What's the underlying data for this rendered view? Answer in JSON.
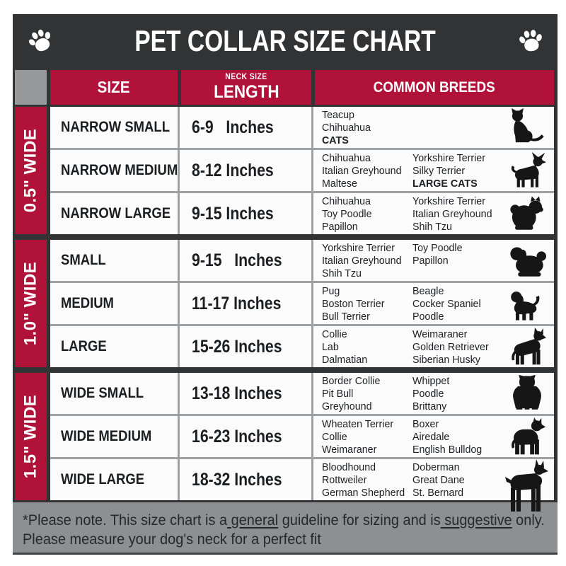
{
  "title": "PET COLLAR SIZE CHART",
  "title_icons": {
    "left": "paw-icon",
    "right": "paw-icon"
  },
  "header": {
    "size": "SIZE",
    "neck_size": "NECK SIZE",
    "length": "LENGTH",
    "breeds": "COMMON BREEDS"
  },
  "groups": [
    {
      "width_label": "0.5\" WIDE",
      "rows": [
        {
          "size": "NARROW SMALL",
          "length": "6-9   Inches",
          "breeds_col1": [
            "Teacup",
            "Chihuahua",
            "CATS"
          ],
          "breeds_col2": [],
          "icon": "cat-icon"
        },
        {
          "size": "NARROW MEDIUM",
          "length": "8-12 Inches",
          "breeds_col1": [
            "Chihuahua",
            "Italian Greyhound",
            "Maltese"
          ],
          "breeds_col2": [
            "Yorkshire Terrier",
            "Silky Terrier",
            "LARGE CATS"
          ],
          "icon": "chihuahua-icon"
        },
        {
          "size": "NARROW LARGE",
          "length": "9-15 Inches",
          "breeds_col1": [
            "Chihuahua",
            "Toy Poodle",
            "Papillon"
          ],
          "breeds_col2": [
            "Yorkshire Terrier",
            "Italian Greyhound",
            "Shih Tzu"
          ],
          "icon": "pomeranian-icon"
        }
      ]
    },
    {
      "width_label": "1.0\" WIDE",
      "rows": [
        {
          "size": "SMALL",
          "length": "9-15   Inches",
          "breeds_col1": [
            "Yorkshire Terrier",
            "Italian Greyhound",
            "Shih Tzu"
          ],
          "breeds_col2": [
            "Toy Poodle",
            "Papillon"
          ],
          "icon": "shih-tzu-icon"
        },
        {
          "size": "MEDIUM",
          "length": "11-17 Inches",
          "breeds_col1": [
            "Pug",
            "Boston Terrier",
            "Bull Terrier"
          ],
          "breeds_col2": [
            "Beagle",
            "Cocker Spaniel",
            "Poodle"
          ],
          "icon": "spaniel-icon"
        },
        {
          "size": "LARGE",
          "length": "15-26 Inches",
          "breeds_col1": [
            "Collie",
            "Lab",
            "Dalmatian"
          ],
          "breeds_col2": [
            "Weimaraner",
            "Golden Retriever",
            "Siberian Husky"
          ],
          "icon": "shepherd-icon"
        }
      ]
    },
    {
      "width_label": "1.5\" WIDE",
      "rows": [
        {
          "size": "WIDE SMALL",
          "length": "13-18 Inches",
          "breeds_col1": [
            "Border Collie",
            "Pit Bull",
            "Greyhound"
          ],
          "breeds_col2": [
            "Whippet",
            "Poodle",
            "Brittany"
          ],
          "icon": "bulldog-icon"
        },
        {
          "size": "WIDE MEDIUM",
          "length": "16-23 Inches",
          "breeds_col1": [
            "Wheaten Terrier",
            "Collie",
            "Weimaraner"
          ],
          "breeds_col2": [
            "Boxer",
            "Airedale",
            "English Bulldog"
          ],
          "icon": "pitbull-icon"
        },
        {
          "size": "WIDE LARGE",
          "length": "18-32 Inches",
          "breeds_col1": [
            "Bloodhound",
            "Rottweiler",
            "German Shepherd"
          ],
          "breeds_col2": [
            "Doberman",
            "Great Dane",
            "St. Bernard"
          ],
          "icon": "doberman-icon"
        }
      ]
    }
  ],
  "footer": {
    "line1": [
      {
        "t": "*Please note. This size chart is a"
      },
      {
        "t": " general",
        "u": true
      },
      {
        "t": " guideline for sizing and is"
      },
      {
        "t": " suggestive",
        "u": true
      },
      {
        "t": " only."
      }
    ],
    "line2": "Please measure your dog's neck for a perfect fit"
  },
  "colors": {
    "accent_red": "#B01239",
    "dark_charcoal": "#313335",
    "corner_gray": "#97999B",
    "footer_gray": "#8D9093",
    "row_separator_gray": "#9EA0A2",
    "cell_background": "#FBFBFB"
  }
}
